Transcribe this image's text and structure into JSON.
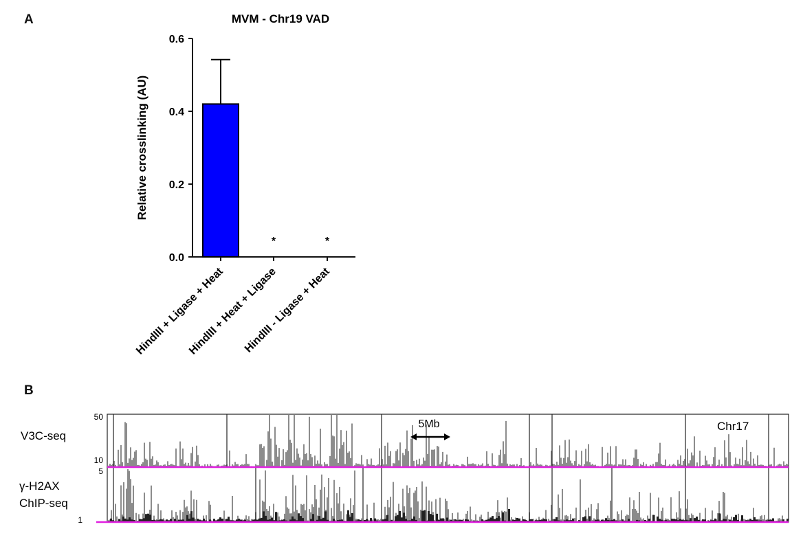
{
  "panels": {
    "a": "A",
    "b": "B"
  },
  "chart_data": [
    {
      "type": "bar",
      "title": "MVM - Chr19 VAD",
      "ylabel": "Relative crosslinking (AU)",
      "xlabel": "",
      "categories": [
        "HindIII + Ligase + Heat",
        "HindIII + Heat + Ligase",
        "HindIII - Ligase + Heat"
      ],
      "values": [
        0.42,
        0,
        0
      ],
      "errors": [
        0.122,
        0,
        0
      ],
      "annotations": [
        "",
        "*",
        "*"
      ],
      "ylim": [
        0,
        0.6
      ],
      "yticks": [
        "0.0",
        "0.2",
        "0.4",
        "0.6"
      ],
      "bar_color": "#0000ff",
      "grid": false
    },
    {
      "type": "area",
      "chromosome": "Chr17",
      "scale_bar": "5Mb",
      "tracks": [
        {
          "label_lines": [
            "V3C-seq"
          ],
          "ymax": "50",
          "ymin": "10",
          "fill": "#8c8c8c"
        },
        {
          "label_lines": [
            "γ-H2AX",
            "ChIP-seq"
          ],
          "ymax": "5",
          "ymin": "1",
          "fill": "#8c8c8c"
        }
      ],
      "baseline_color": "#e020e0"
    }
  ]
}
